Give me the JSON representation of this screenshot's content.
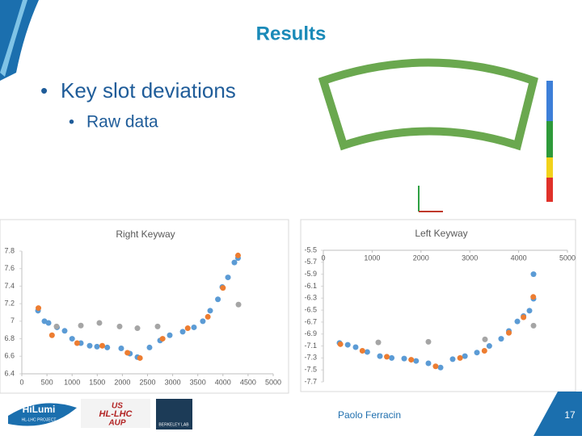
{
  "slide": {
    "title": "Results",
    "bullet": "Key slot deviations",
    "sub_bullet": "Raw data",
    "author": "Paolo Ferracin",
    "page": "17",
    "logos": [
      "HiLumi",
      "HL-LHC PROJECT",
      "US",
      "HL-LHC",
      "AUP",
      "BERKELEY LAB"
    ]
  },
  "chart_data": [
    {
      "type": "scatter",
      "title": "Right Keyway",
      "x_axis_position": "bottom",
      "xlim": [
        0,
        5000
      ],
      "xticks": [
        0,
        500,
        1000,
        1500,
        2000,
        2500,
        3000,
        3500,
        4000,
        4500,
        5000
      ],
      "ylim": [
        6.4,
        7.8
      ],
      "yticks": [
        6.4,
        6.6,
        6.8,
        7,
        7.2,
        7.4,
        7.6,
        7.8
      ],
      "series": [
        {
          "color": "#5b9bd5",
          "x": [
            322,
            450,
            531,
            700,
            852,
            1000,
            1174,
            1350,
            1495,
            1700,
            1977,
            2150,
            2299,
            2540,
            2750,
            2942,
            3200,
            3424,
            3600,
            3746,
            3900,
            3987,
            4100,
            4228,
            4300
          ],
          "values": [
            7.12,
            7.0,
            6.98,
            6.93,
            6.89,
            6.8,
            6.75,
            6.72,
            6.71,
            6.7,
            6.69,
            6.63,
            6.59,
            6.7,
            6.78,
            6.84,
            6.88,
            6.93,
            7.0,
            7.12,
            7.25,
            7.39,
            7.5,
            7.67,
            7.72
          ]
        },
        {
          "color": "#ed7d31",
          "x": [
            330,
            600,
            1100,
            1600,
            2100,
            2350,
            2800,
            3300,
            3700,
            4000,
            4300
          ],
          "values": [
            7.15,
            6.84,
            6.75,
            6.72,
            6.64,
            6.58,
            6.8,
            6.92,
            7.05,
            7.38,
            7.75
          ]
        },
        {
          "color": "#a5a5a5",
          "x": [
            691,
            1174,
            1543,
            1945,
            2299,
            2701,
            4309
          ],
          "values": [
            6.94,
            6.95,
            6.98,
            6.94,
            6.92,
            6.94,
            7.19
          ]
        }
      ]
    },
    {
      "type": "scatter",
      "title": "Left Keyway",
      "x_axis_position": "top",
      "xlim": [
        0,
        5000
      ],
      "xticks": [
        0,
        1000,
        2000,
        3000,
        4000,
        5000
      ],
      "ylim": [
        -7.7,
        -5.5
      ],
      "yticks": [
        -5.5,
        -5.7,
        -5.9,
        -6.1,
        -6.3,
        -6.5,
        -6.7,
        -6.9,
        -7.1,
        -7.3,
        -7.5,
        -7.7
      ],
      "series": [
        {
          "color": "#5b9bd5",
          "x": [
            331,
            500,
            662,
            900,
            1159,
            1400,
            1656,
            1900,
            2152,
            2401,
            2649,
            2900,
            3146,
            3400,
            3642,
            3800,
            3974,
            4100,
            4222,
            4305,
            4305
          ],
          "values": [
            -7.05,
            -7.08,
            -7.12,
            -7.2,
            -7.27,
            -7.3,
            -7.31,
            -7.35,
            -7.39,
            -7.46,
            -7.32,
            -7.27,
            -7.21,
            -7.1,
            -6.98,
            -6.85,
            -6.69,
            -6.6,
            -6.51,
            -6.31,
            -5.9
          ]
        },
        {
          "color": "#ed7d31",
          "x": [
            350,
            800,
            1300,
            1800,
            2300,
            2800,
            3300,
            3800,
            4100,
            4300
          ],
          "values": [
            -7.07,
            -7.18,
            -7.28,
            -7.33,
            -7.44,
            -7.3,
            -7.18,
            -6.88,
            -6.62,
            -6.28
          ]
        },
        {
          "color": "#a5a5a5",
          "x": [
            1126,
            2152,
            3311,
            4305
          ],
          "values": [
            -7.04,
            -7.03,
            -6.99,
            -6.76
          ]
        }
      ]
    }
  ]
}
